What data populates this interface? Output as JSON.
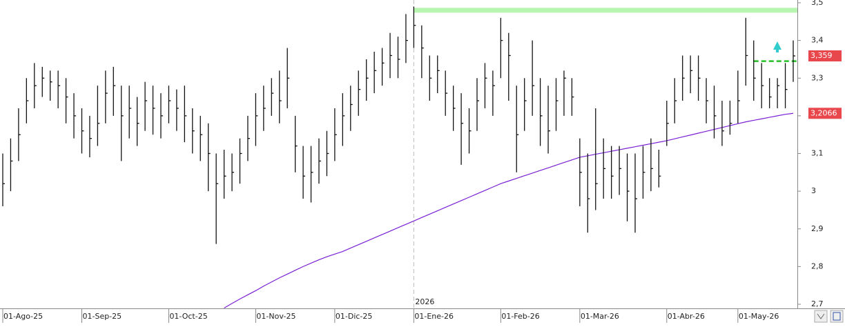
{
  "chart_data": {
    "type": "ohlc",
    "categories": [
      "01-Ago-25",
      null,
      null,
      null,
      null,
      null,
      null,
      null,
      null,
      null,
      "01-Sep-25",
      null,
      null,
      null,
      null,
      null,
      null,
      null,
      null,
      null,
      null,
      "01-Oct-25",
      null,
      null,
      null,
      null,
      null,
      null,
      null,
      null,
      null,
      null,
      "01-Nov-25",
      null,
      null,
      null,
      null,
      null,
      null,
      null,
      null,
      null,
      "01-Dic-25",
      null,
      null,
      null,
      null,
      null,
      null,
      null,
      null,
      null,
      "01-Ene-26",
      null,
      null,
      null,
      null,
      null,
      null,
      null,
      null,
      null,
      null,
      "01-Feb-26",
      null,
      null,
      null,
      null,
      null,
      null,
      null,
      null,
      null,
      "01-Mar-26",
      null,
      null,
      null,
      null,
      null,
      null,
      null,
      null,
      null,
      null,
      "01-Abr-26",
      null,
      null,
      null,
      null,
      null,
      null,
      null,
      null,
      "01-May-26",
      null,
      null,
      null,
      null,
      null,
      null,
      null
    ],
    "high": [
      3.1,
      3.14,
      3.22,
      3.3,
      3.34,
      3.33,
      3.32,
      3.32,
      3.3,
      3.26,
      3.22,
      3.2,
      3.28,
      3.32,
      3.33,
      3.28,
      3.28,
      3.25,
      3.29,
      3.28,
      3.26,
      3.28,
      3.27,
      3.28,
      3.22,
      3.2,
      3.18,
      3.1,
      3.11,
      3.1,
      3.14,
      3.2,
      3.26,
      3.28,
      3.3,
      3.32,
      3.38,
      3.2,
      3.12,
      3.12,
      3.14,
      3.16,
      3.22,
      3.26,
      3.28,
      3.32,
      3.35,
      3.37,
      3.38,
      3.42,
      3.41,
      3.47,
      3.49,
      3.44,
      3.36,
      3.36,
      3.32,
      3.28,
      3.26,
      3.22,
      3.3,
      3.34,
      3.32,
      3.46,
      3.42,
      3.28,
      3.3,
      3.4,
      3.3,
      3.28,
      3.3,
      3.32,
      3.3,
      3.14,
      3.1,
      3.22,
      3.14,
      3.12,
      3.12,
      3.1,
      3.1,
      3.12,
      3.14,
      3.11,
      3.24,
      3.3,
      3.36,
      3.36,
      3.36,
      3.3,
      3.28,
      3.24,
      3.24,
      3.32,
      3.46,
      3.4,
      3.34,
      3.3,
      3.3,
      3.34,
      3.4
    ],
    "low": [
      2.96,
      3.0,
      3.08,
      3.18,
      3.22,
      3.25,
      3.24,
      3.22,
      3.18,
      3.14,
      3.1,
      3.09,
      3.12,
      3.18,
      3.2,
      3.08,
      3.14,
      3.12,
      3.16,
      3.15,
      3.14,
      3.18,
      3.16,
      3.13,
      3.1,
      3.08,
      3.0,
      2.86,
      2.98,
      3.0,
      3.02,
      3.08,
      3.12,
      3.16,
      3.2,
      3.18,
      3.22,
      3.05,
      2.98,
      2.97,
      3.02,
      3.04,
      3.08,
      3.12,
      3.16,
      3.2,
      3.24,
      3.26,
      3.28,
      3.3,
      3.3,
      3.34,
      3.38,
      3.3,
      3.24,
      3.26,
      3.2,
      3.16,
      3.07,
      3.1,
      3.16,
      3.22,
      3.2,
      3.3,
      3.24,
      3.05,
      3.16,
      3.2,
      3.12,
      3.1,
      3.16,
      3.2,
      3.2,
      2.96,
      2.89,
      2.95,
      2.98,
      2.98,
      2.99,
      2.92,
      2.89,
      2.98,
      3.0,
      3.01,
      3.12,
      3.18,
      3.24,
      3.26,
      3.24,
      3.18,
      3.14,
      3.12,
      3.15,
      3.18,
      3.28,
      3.24,
      3.22,
      3.22,
      3.22,
      3.22,
      3.29
    ],
    "close": [
      3.02,
      3.08,
      3.15,
      3.24,
      3.28,
      3.3,
      3.29,
      3.28,
      3.25,
      3.2,
      3.16,
      3.14,
      3.18,
      3.26,
      3.28,
      3.2,
      3.22,
      3.18,
      3.24,
      3.22,
      3.2,
      3.24,
      3.22,
      3.2,
      3.16,
      3.15,
      3.1,
      3.02,
      3.04,
      3.05,
      3.1,
      3.14,
      3.2,
      3.22,
      3.26,
      3.24,
      3.3,
      3.12,
      3.04,
      3.05,
      3.08,
      3.1,
      3.15,
      3.2,
      3.23,
      3.27,
      3.3,
      3.32,
      3.34,
      3.36,
      3.35,
      3.4,
      3.44,
      3.38,
      3.3,
      3.32,
      3.26,
      3.22,
      3.18,
      3.16,
      3.24,
      3.3,
      3.28,
      3.4,
      3.36,
      3.15,
      3.24,
      3.28,
      3.2,
      3.16,
      3.24,
      3.3,
      3.25,
      3.05,
      2.98,
      3.02,
      3.06,
      3.04,
      3.06,
      3.0,
      2.98,
      3.05,
      3.06,
      3.04,
      3.18,
      3.24,
      3.3,
      3.32,
      3.3,
      3.24,
      3.2,
      3.16,
      3.18,
      3.24,
      3.36,
      3.3,
      3.28,
      3.25,
      3.28,
      3.27,
      3.359
    ],
    "ma": [
      null,
      null,
      null,
      null,
      null,
      null,
      null,
      null,
      null,
      null,
      null,
      null,
      null,
      null,
      null,
      null,
      null,
      null,
      null,
      null,
      null,
      null,
      null,
      null,
      null,
      null,
      null,
      null,
      2.69,
      2.702,
      2.714,
      2.725,
      2.736,
      2.748,
      2.759,
      2.77,
      2.78,
      2.79,
      2.8,
      2.809,
      2.818,
      2.826,
      2.833,
      2.84,
      2.849,
      2.858,
      2.867,
      2.876,
      2.885,
      2.894,
      2.903,
      2.912,
      2.921,
      2.93,
      2.939,
      2.948,
      2.957,
      2.966,
      2.975,
      2.984,
      2.993,
      3.002,
      3.011,
      3.02,
      3.027,
      3.034,
      3.041,
      3.048,
      3.055,
      3.062,
      3.069,
      3.076,
      3.083,
      3.09,
      3.094,
      3.098,
      3.102,
      3.106,
      3.11,
      3.114,
      3.118,
      3.122,
      3.126,
      3.13,
      3.134,
      3.139,
      3.144,
      3.149,
      3.154,
      3.159,
      3.164,
      3.169,
      3.174,
      3.179,
      3.184,
      3.188,
      3.192,
      3.196,
      3.2,
      3.204,
      3.2066
    ],
    "bar_color": "#111111",
    "ma_color": "#7a1fd6",
    "last_price": {
      "value": 3.359,
      "label": "3,359"
    },
    "ma_last": {
      "value": 3.2066,
      "label": "3,2066"
    },
    "resistance": 3.48,
    "resistance_color": "#b8f5b0",
    "target": 3.345,
    "target_color": "#22c022",
    "year_marker": "2026",
    "ylim": [
      2.7,
      3.5
    ],
    "yticks": [
      {
        "value": 3.5,
        "label": "3,5"
      },
      {
        "value": 3.4,
        "label": "3,4"
      },
      {
        "value": 3.3,
        "label": "3,3"
      },
      {
        "value": 3.2,
        "label": "3,2"
      },
      {
        "value": 3.1,
        "label": "3,1"
      },
      3,
      {
        "value": 2.9,
        "label": "2,9"
      },
      {
        "value": 2.8,
        "label": "2,8"
      },
      {
        "value": 2.7,
        "label": "2,7"
      }
    ]
  }
}
